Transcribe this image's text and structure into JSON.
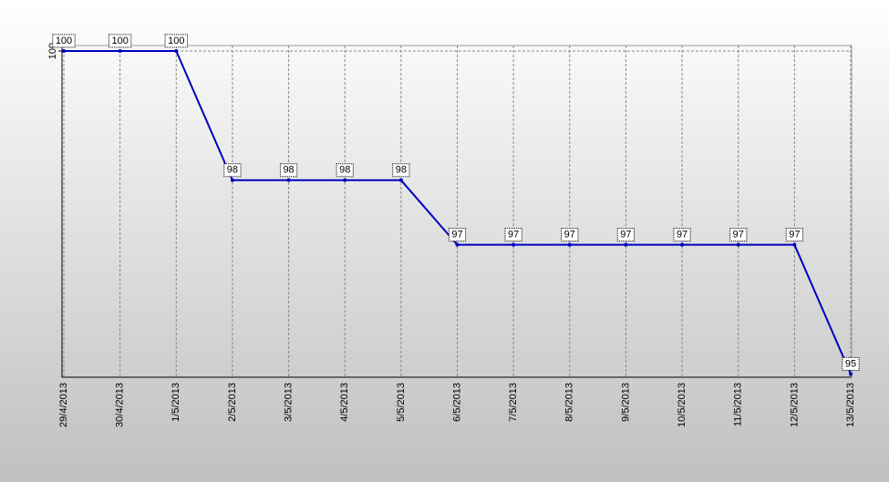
{
  "chart_data": {
    "type": "line",
    "categories": [
      "29/4/2013",
      "30/4/2013",
      "1/5/2013",
      "2/5/2013",
      "3/5/2013",
      "4/5/2013",
      "5/5/2013",
      "6/5/2013",
      "7/5/2013",
      "8/5/2013",
      "9/5/2013",
      "10/5/2013",
      "11/5/2013",
      "12/5/2013",
      "13/5/2013"
    ],
    "values": [
      100,
      100,
      100,
      98,
      98,
      98,
      98,
      97,
      97,
      97,
      97,
      97,
      97,
      97,
      95
    ],
    "color": "#0000c0",
    "ylim": [
      94.95,
      100
    ],
    "yticks": [
      100
    ],
    "grid": true
  }
}
